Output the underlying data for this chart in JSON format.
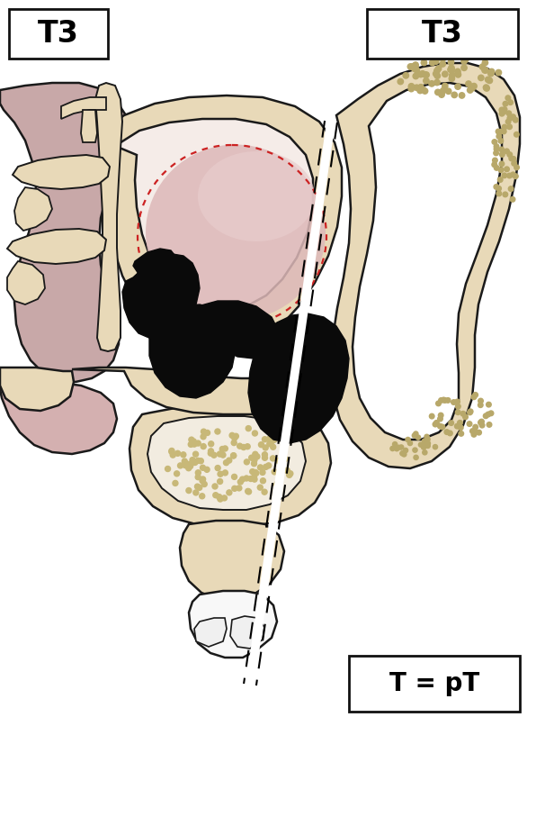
{
  "bg": "#ffffff",
  "bone": "#e8d9b8",
  "bone_lw": 1.8,
  "bone_edge": "#1a1a1a",
  "nasal_pink": "#c8a8a8",
  "nasal_pink2": "#d4b0b0",
  "tumor_black": "#0a0a0a",
  "tumor_pink_fill": "#ddb8b8",
  "tumor_pink_light": "#e8cccc",
  "tumor_dot_red": "#cc2222",
  "spongy_dot": "#b8a86a",
  "spongy_dot2": "#c8b878",
  "white_line": "#ffffff",
  "dashed": "#111111",
  "box_bg": "#ffffff",
  "box_edge": "#111111",
  "label_T3_left": "T3",
  "label_T3_right": "T3",
  "label_pT": "T = pT"
}
